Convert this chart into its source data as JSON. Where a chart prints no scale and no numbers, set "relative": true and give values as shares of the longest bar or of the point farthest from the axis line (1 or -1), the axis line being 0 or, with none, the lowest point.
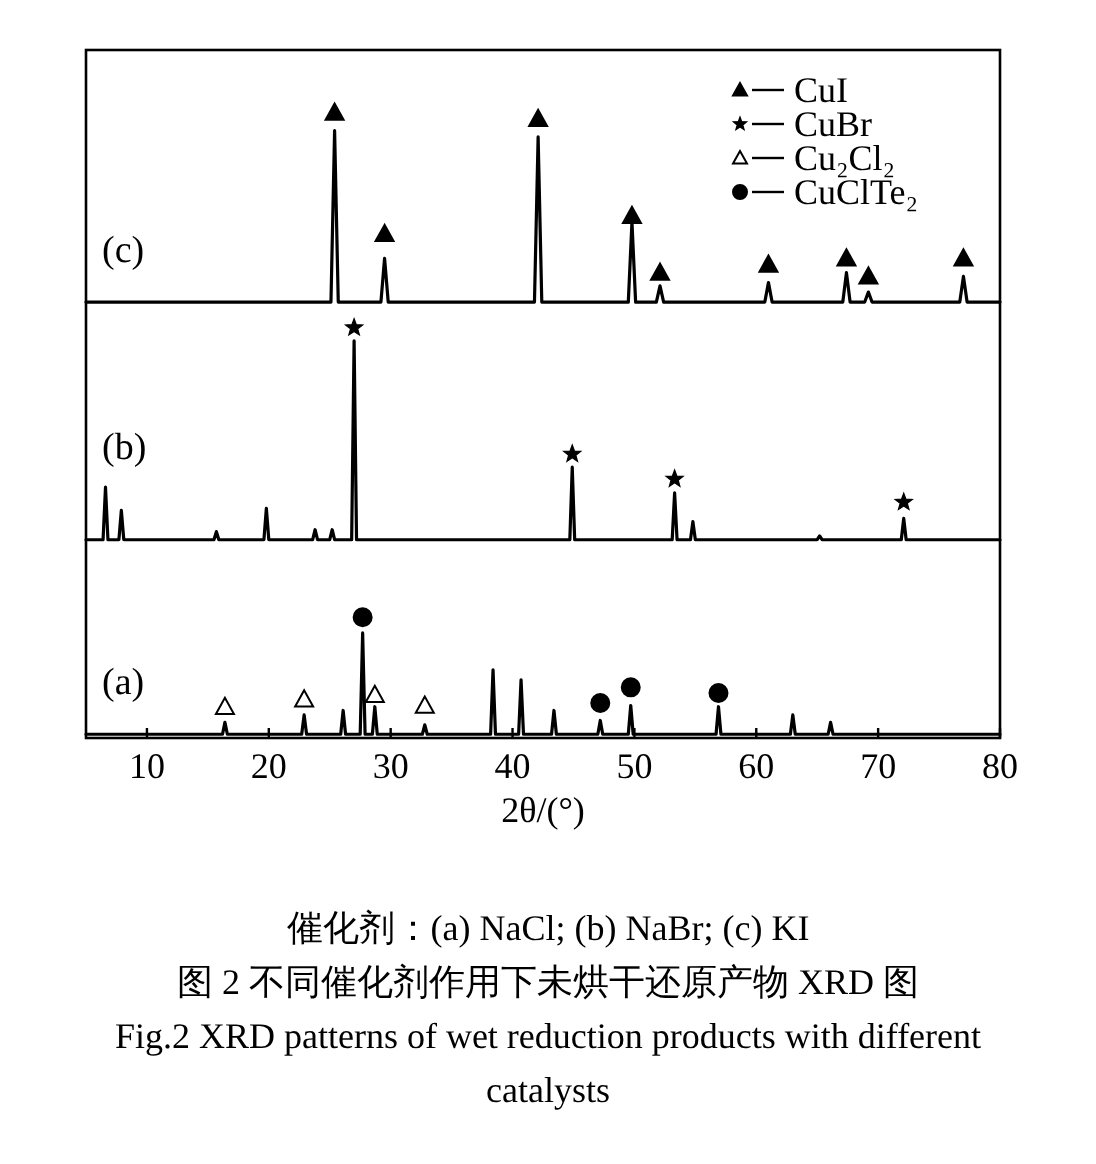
{
  "chart_data": {
    "type": "line",
    "relative": true,
    "xlabel": "2θ/(°)",
    "xlim": [
      5,
      80
    ],
    "xticks": [
      10,
      20,
      30,
      40,
      50,
      60,
      70,
      80
    ],
    "grid": false,
    "legend": "top right",
    "line_style": "solid",
    "marker": "none",
    "series": [
      {
        "name": "(c)",
        "color": "#000000",
        "x": [
          5,
          25.1,
          25.4,
          25.7,
          29.2,
          29.5,
          29.8,
          41.8,
          42.1,
          42.4,
          49.5,
          49.8,
          50.1,
          51.8,
          52.1,
          52.4,
          60.7,
          61.0,
          61.3,
          67.1,
          67.4,
          67.7,
          68.9,
          69.2,
          69.5,
          76.7,
          77.0,
          77.3,
          80
        ],
        "values": [
          0.697,
          0.697,
          0.971,
          0.697,
          0.697,
          0.767,
          0.697,
          0.697,
          0.961,
          0.697,
          0.697,
          0.825,
          0.697,
          0.697,
          0.723,
          0.697,
          0.697,
          0.728,
          0.697,
          0.697,
          0.744,
          0.697,
          0.697,
          0.713,
          0.697,
          0.697,
          0.738,
          0.697,
          0.697
        ]
      },
      {
        "name": "(b)",
        "color": "#000000",
        "x": [
          5,
          6.4,
          6.6,
          6.8,
          7.7,
          7.9,
          8.1,
          15.5,
          15.7,
          15.9,
          19.6,
          19.8,
          20.0,
          23.6,
          23.8,
          24.0,
          25.0,
          25.2,
          25.4,
          26.8,
          27.0,
          27.2,
          44.7,
          44.9,
          45.1,
          53.1,
          53.3,
          53.5,
          54.6,
          54.8,
          55.0,
          65.0,
          65.2,
          65.4,
          71.9,
          72.1,
          72.3,
          80
        ],
        "values": [
          0.317,
          0.317,
          0.401,
          0.317,
          0.317,
          0.364,
          0.317,
          0.317,
          0.33,
          0.317,
          0.317,
          0.367,
          0.317,
          0.317,
          0.333,
          0.317,
          0.317,
          0.333,
          0.317,
          0.317,
          0.635,
          0.317,
          0.317,
          0.433,
          0.317,
          0.317,
          0.392,
          0.317,
          0.317,
          0.346,
          0.317,
          0.317,
          0.323,
          0.317,
          0.317,
          0.351,
          0.317,
          0.317
        ]
      },
      {
        "name": "(a)",
        "color": "#000000",
        "x": [
          5,
          16.2,
          16.4,
          16.6,
          22.7,
          22.9,
          23.1,
          25.9,
          26.1,
          26.3,
          27.5,
          27.7,
          27.9,
          28.5,
          28.7,
          28.9,
          32.6,
          32.8,
          33.0,
          38.2,
          38.4,
          38.6,
          40.5,
          40.7,
          40.9,
          43.2,
          43.4,
          43.6,
          47.0,
          47.2,
          47.4,
          49.5,
          49.7,
          49.9,
          56.7,
          56.9,
          57.1,
          62.8,
          63.0,
          63.2,
          65.9,
          66.1,
          66.3,
          80
        ],
        "values": [
          0.006,
          0.006,
          0.025,
          0.006,
          0.006,
          0.037,
          0.006,
          0.006,
          0.044,
          0.006,
          0.006,
          0.168,
          0.006,
          0.006,
          0.05,
          0.006,
          0.006,
          0.021,
          0.006,
          0.006,
          0.109,
          0.006,
          0.006,
          0.093,
          0.006,
          0.006,
          0.044,
          0.006,
          0.006,
          0.028,
          0.006,
          0.006,
          0.052,
          0.006,
          0.006,
          0.05,
          0.006,
          0.006,
          0.037,
          0.006,
          0.006,
          0.025,
          0.006,
          0.006
        ]
      },
      {
        "name": "CuI",
        "type": "scatter",
        "marker": "triangle",
        "color": "#000000",
        "x": [
          25.4,
          29.5,
          42.1,
          49.8,
          52.1,
          61.0,
          67.4,
          69.2,
          77.0
        ],
        "values": [
          1,
          0.806,
          0.99,
          0.835,
          0.744,
          0.757,
          0.767,
          0.738,
          0.767
        ]
      },
      {
        "name": "CuBr",
        "type": "scatter",
        "marker": "star",
        "color": "#000000",
        "x": [
          27.0,
          44.9,
          53.3,
          72.1
        ],
        "values": [
          0.656,
          0.454,
          0.414,
          0.377
        ]
      },
      {
        "name": "Cu₂Cl₂",
        "type": "scatter",
        "marker": "triangle",
        "color": "#ffffff",
        "x": [
          16.4,
          22.9,
          28.7,
          32.8
        ],
        "values": [
          0.05,
          0.062,
          0.069,
          0.052
        ]
      },
      {
        "name": "CuClTe₂",
        "type": "scatter",
        "marker": "circle",
        "color": "#000000",
        "x": [
          27.7,
          47.2,
          49.7,
          56.9
        ],
        "values": [
          0.193,
          0.056,
          0.081,
          0.072
        ]
      }
    ],
    "annotations": [
      "催化剂：(a) NaCl; (b) NaBr; (c) KI",
      "图 2  不同催化剂作用下未烘干还原产物 XRD 图",
      "Fig.2  XRD patterns of wet reduction products with different catalysts"
    ]
  }
}
